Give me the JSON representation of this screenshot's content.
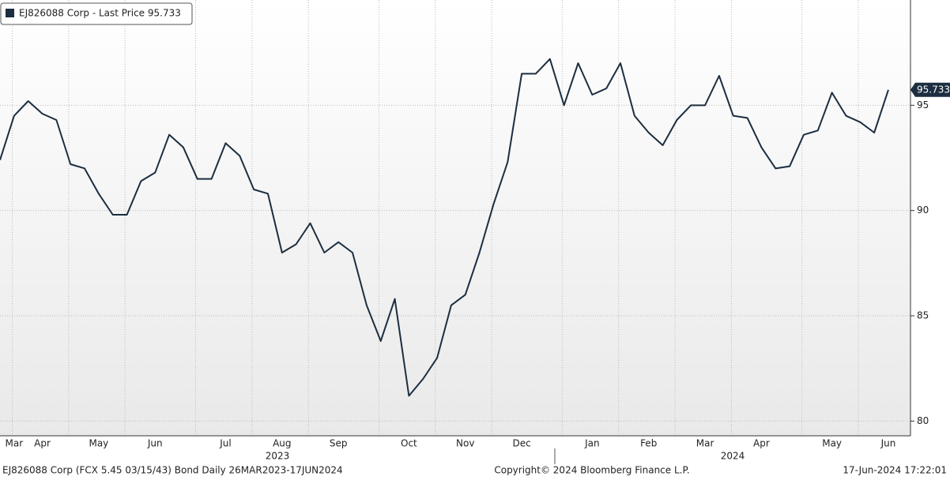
{
  "chart_data": {
    "type": "line",
    "categories": [
      null,
      "Mar",
      null,
      "Apr",
      null,
      null,
      null,
      "May",
      null,
      null,
      null,
      "Jun",
      null,
      null,
      null,
      null,
      "Jul",
      null,
      null,
      null,
      "Aug",
      null,
      null,
      null,
      "Sep",
      null,
      null,
      null,
      null,
      "Oct",
      null,
      null,
      null,
      "Nov",
      null,
      null,
      null,
      "Dec",
      null,
      null,
      null,
      null,
      "Jan",
      null,
      null,
      null,
      "Feb",
      null,
      null,
      null,
      "Mar",
      null,
      null,
      null,
      "Apr",
      null,
      null,
      null,
      null,
      "May",
      null,
      null,
      null,
      "Jun"
    ],
    "year_labels": [
      "2023",
      "2024"
    ],
    "series": [
      {
        "name": "EJ826088 Corp - Last Price 95.733",
        "color": "#1c2e40",
        "values": [
          92.4,
          94.5,
          95.2,
          94.6,
          94.3,
          92.2,
          92.0,
          90.8,
          89.8,
          89.8,
          91.4,
          91.8,
          93.6,
          93.0,
          91.5,
          91.5,
          93.2,
          92.6,
          91.0,
          90.8,
          88.0,
          88.4,
          89.4,
          88.0,
          88.5,
          88.0,
          85.5,
          83.8,
          85.8,
          81.2,
          82.0,
          83.0,
          85.5,
          86.0,
          88.0,
          90.3,
          92.3,
          96.5,
          96.5,
          97.2,
          95.0,
          97.0,
          95.5,
          95.8,
          97.0,
          94.5,
          93.7,
          93.1,
          94.3,
          95.0,
          95.0,
          96.4,
          94.5,
          94.4,
          93.0,
          92.0,
          92.1,
          93.6,
          93.8,
          95.6,
          94.5,
          94.2,
          93.7,
          95.733
        ]
      }
    ],
    "ylim": [
      79.3,
      100
    ],
    "yticks": [
      80,
      85,
      90,
      95
    ],
    "grid": true,
    "footer_left": "EJ826088 Corp (FCX 5.45 03/15/43) Bond  Daily 26MAR2023-17JUN2024",
    "footer_center": "Copyright© 2024 Bloomberg Finance L.P.",
    "footer_right": "17-Jun-2024 17:22:01"
  }
}
